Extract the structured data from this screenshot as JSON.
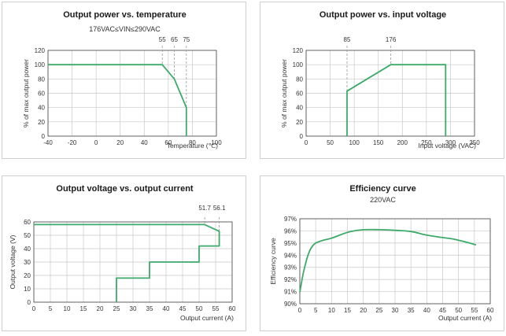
{
  "colors": {
    "series": "#3daa6a",
    "grid": "#c8c8c8",
    "frame": "#444444",
    "text": "#333333",
    "marker": "#9a9a9a"
  },
  "chart_data": [
    {
      "type": "line",
      "title": "Output power vs. temperature",
      "subtitle": "176VAC≤VIN≤290VAC",
      "xlabel": "Temperature (℃)",
      "ylabel": "% of max output power",
      "xlim": [
        -40,
        100
      ],
      "ylim": [
        0,
        120
      ],
      "xticks": [
        -40,
        -20,
        0,
        20,
        40,
        60,
        80,
        100
      ],
      "yticks": [
        0,
        20,
        40,
        60,
        80,
        100,
        120
      ],
      "grid": true,
      "annotations": [
        55,
        65,
        75
      ],
      "x": [
        -40,
        55,
        65,
        75,
        75
      ],
      "y": [
        100,
        100,
        80,
        40,
        0
      ]
    },
    {
      "type": "line",
      "title": "Output power vs. input voltage",
      "subtitle": "",
      "xlabel": "Input voltage (VAC)",
      "ylabel": "% of max output power",
      "xlim": [
        0,
        350
      ],
      "ylim": [
        0,
        120
      ],
      "xticks": [
        0,
        50,
        100,
        150,
        200,
        250,
        300,
        350
      ],
      "yticks": [
        0,
        20,
        40,
        60,
        80,
        100,
        120
      ],
      "grid": true,
      "annotations": [
        85,
        176
      ],
      "x": [
        85,
        85,
        176,
        290,
        290
      ],
      "y": [
        0,
        63,
        100,
        100,
        0
      ]
    },
    {
      "type": "line",
      "title": "Output voltage vs. output current",
      "subtitle": "",
      "xlabel": "Output current (A)",
      "ylabel": "Output voltage (V)",
      "xlim": [
        0,
        60
      ],
      "ylim": [
        0,
        60
      ],
      "xticks": [
        0,
        5,
        10,
        15,
        20,
        25,
        30,
        35,
        40,
        45,
        50,
        55,
        60
      ],
      "yticks": [
        0,
        10,
        20,
        30,
        40,
        50,
        60
      ],
      "grid": true,
      "annotations": [
        "51.7",
        "56.1"
      ],
      "x": [
        0,
        51.7,
        56.1,
        56.1,
        50,
        50,
        35,
        35,
        25,
        25
      ],
      "y": [
        58,
        58,
        53,
        42,
        42,
        30,
        30,
        18,
        18,
        0
      ]
    },
    {
      "type": "line",
      "title": "Efficiency curve",
      "subtitle": "220VAC",
      "xlabel": "Output current (A)",
      "ylabel": "Efficiency curve",
      "xlim": [
        0,
        60
      ],
      "ylim": [
        90,
        97
      ],
      "xticks": [
        0,
        5,
        10,
        15,
        20,
        25,
        30,
        35,
        40,
        45,
        50,
        55,
        60
      ],
      "yticks": [
        90,
        91,
        92,
        93,
        94,
        95,
        96,
        97
      ],
      "ytick_labels": [
        "90%",
        "91%",
        "92%",
        "93%",
        "94%",
        "95%",
        "96%",
        "97%"
      ],
      "grid": true,
      "annotations": [],
      "x": [
        0,
        1,
        2,
        3,
        4,
        5,
        7,
        10,
        13,
        16,
        20,
        25,
        30,
        35,
        40,
        45,
        48,
        52,
        55.5
      ],
      "y": [
        90.95,
        92.4,
        93.5,
        94.3,
        94.75,
        95.0,
        95.2,
        95.4,
        95.7,
        95.95,
        96.1,
        96.1,
        96.05,
        95.95,
        95.65,
        95.45,
        95.35,
        95.1,
        94.85
      ]
    }
  ]
}
